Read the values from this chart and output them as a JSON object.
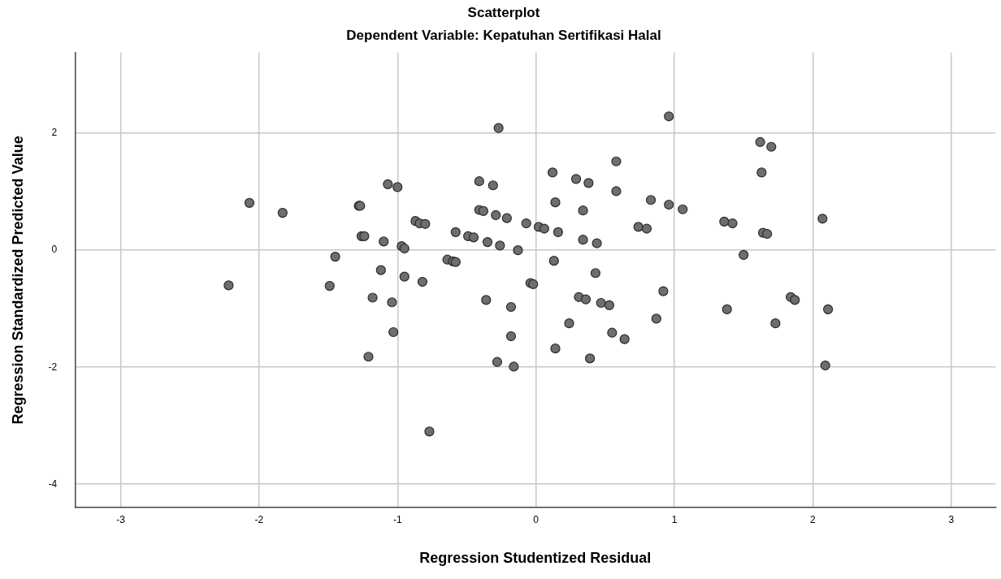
{
  "chart_data": {
    "type": "scatter",
    "title": "Scatterplot",
    "subtitle": "Dependent Variable: Kepatuhan Sertifikasi Halal",
    "xlabel": "Regression Studentized Residual",
    "ylabel": "Regression Standardized Predicted Value",
    "x": [
      -2.07,
      -1.83,
      -2.22,
      -1.28,
      -1.27,
      -1.26,
      -1.24,
      -1.1,
      -1.45,
      -1.12,
      -1.49,
      -1.18,
      -1.21,
      -0.27,
      0.96,
      -1.07,
      -1.0,
      -0.41,
      -0.31,
      0.12,
      0.29,
      0.38,
      0.58,
      0.58,
      0.83,
      0.96,
      1.06,
      0.14,
      0.34,
      -0.41,
      -0.38,
      -0.29,
      -0.21,
      -0.07,
      0.02,
      0.06,
      0.16,
      0.74,
      0.8,
      0.34,
      0.44,
      -0.87,
      -0.84,
      -0.8,
      -0.58,
      -0.49,
      -0.45,
      -0.35,
      -0.26,
      -0.13,
      -0.97,
      -0.95,
      -0.64,
      -0.6,
      -0.58,
      0.13,
      0.43,
      -0.95,
      -0.82,
      -0.04,
      -0.02,
      0.92,
      -1.04,
      -0.36,
      -0.18,
      0.31,
      0.36,
      0.47,
      0.53,
      0.87,
      0.24,
      -1.03,
      -0.18,
      0.55,
      0.64,
      0.14,
      0.39,
      -0.28,
      -0.16,
      -0.77,
      1.62,
      1.7,
      1.63,
      1.36,
      1.42,
      2.07,
      1.64,
      1.67,
      1.5,
      1.84,
      1.87,
      1.38,
      2.11,
      1.73,
      2.09
    ],
    "values": [
      0.81,
      0.64,
      -0.6,
      0.76,
      0.76,
      0.24,
      0.24,
      0.15,
      -0.11,
      -0.34,
      -0.61,
      -0.81,
      -1.82,
      2.09,
      2.29,
      1.13,
      1.08,
      1.18,
      1.11,
      1.33,
      1.22,
      1.15,
      1.52,
      1.01,
      0.86,
      0.78,
      0.7,
      0.82,
      0.68,
      0.69,
      0.67,
      0.6,
      0.55,
      0.46,
      0.4,
      0.37,
      0.31,
      0.4,
      0.37,
      0.18,
      0.12,
      0.5,
      0.46,
      0.45,
      0.31,
      0.24,
      0.22,
      0.14,
      0.08,
      0.0,
      0.07,
      0.03,
      -0.16,
      -0.19,
      -0.2,
      -0.18,
      -0.39,
      -0.45,
      -0.54,
      -0.56,
      -0.58,
      -0.7,
      -0.89,
      -0.85,
      -0.97,
      -0.8,
      -0.84,
      -0.9,
      -0.94,
      -1.17,
      -1.25,
      -1.4,
      -1.47,
      -1.41,
      -1.52,
      -1.68,
      -1.85,
      -1.91,
      -1.99,
      -3.1,
      1.85,
      1.77,
      1.33,
      0.49,
      0.46,
      0.54,
      0.3,
      0.28,
      -0.08,
      -0.8,
      -0.85,
      -1.01,
      -1.01,
      -1.25,
      -1.97
    ],
    "color": "#6e6e6e",
    "marker": "circle",
    "grid": true,
    "xlim": [
      -3.33,
      3.32
    ],
    "ylim": [
      -4.4,
      3.38
    ],
    "xticks": [
      -3,
      -2,
      -1,
      0,
      1,
      2,
      3
    ],
    "yticks": [
      -4,
      -2,
      0,
      2
    ]
  }
}
